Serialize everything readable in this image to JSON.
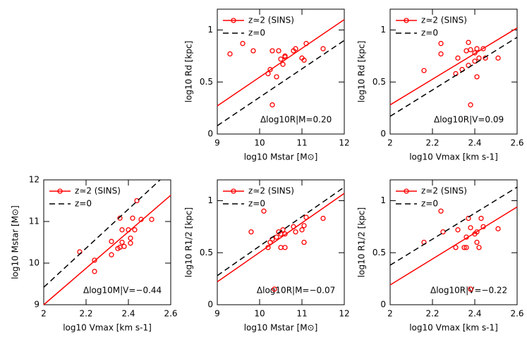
{
  "chart_data": [
    {
      "type": "scatter",
      "xlabel": "log10 Mstar [M⊙]",
      "ylabel": "log10 Rd [kpc]",
      "annotation": "Δlog10R|M=0.20",
      "xlim": [
        9,
        12
      ],
      "ylim": [
        0,
        1.2
      ],
      "xticks": [
        9,
        10,
        11,
        12
      ],
      "yticks": [
        0,
        0.5,
        1
      ],
      "series": [
        {
          "name": "z≃2 (SINS)",
          "color": "#ff0000",
          "x": [
            9.3,
            9.6,
            9.85,
            10.2,
            10.25,
            10.3,
            10.4,
            10.45,
            10.5,
            10.55,
            10.6,
            10.6,
            10.8,
            10.85,
            11.0,
            11.05,
            11.1,
            11.5,
            10.3
          ],
          "values": [
            0.77,
            0.87,
            0.8,
            0.58,
            0.62,
            0.8,
            0.55,
            0.8,
            0.72,
            0.67,
            0.74,
            0.75,
            0.8,
            0.82,
            0.73,
            0.71,
            0.87,
            0.82,
            0.28
          ],
          "fit": {
            "x": [
              9,
              12
            ],
            "values": [
              0.27,
              1.1
            ]
          }
        },
        {
          "name": "z=0",
          "color": "#000000",
          "dashed": true,
          "x": [
            9,
            12
          ],
          "values": [
            0.08,
            0.9
          ]
        }
      ]
    },
    {
      "type": "scatter",
      "xlabel": "log10 Vmax [km s-1]",
      "ylabel": "log10 Rd [kpc]",
      "annotation": "Δlog10R|V=0.09",
      "xlim": [
        2,
        2.6
      ],
      "ylim": [
        0,
        1.2
      ],
      "xticks": [
        2,
        2.2,
        2.4,
        2.6
      ],
      "yticks": [
        0,
        0.5,
        1
      ],
      "series": [
        {
          "name": "z≃2 (SINS)",
          "color": "#ff0000",
          "x": [
            2.16,
            2.24,
            2.24,
            2.32,
            2.31,
            2.34,
            2.36,
            2.37,
            2.37,
            2.38,
            2.38,
            2.4,
            2.4,
            2.41,
            2.41,
            2.42,
            2.44,
            2.45,
            2.51
          ],
          "values": [
            0.61,
            0.87,
            0.77,
            0.73,
            0.58,
            0.62,
            0.8,
            0.66,
            0.88,
            0.81,
            0.28,
            0.78,
            0.7,
            0.82,
            0.55,
            0.73,
            0.82,
            0.73,
            0.73
          ],
          "fit": {
            "x": [
              2,
              2.6
            ],
            "values": [
              0.28,
              1.02
            ]
          }
        },
        {
          "name": "z=0",
          "color": "#000000",
          "dashed": true,
          "x": [
            2,
            2.6
          ],
          "values": [
            0.17,
            0.93
          ]
        }
      ]
    },
    {
      "type": "scatter",
      "xlabel": "log10 Vmax [km s-1]",
      "ylabel": "log10 Mstar [M⊙]",
      "annotation": "Δlog10M|V=−0.44",
      "xlim": [
        2,
        2.6
      ],
      "ylim": [
        9,
        12
      ],
      "xticks": [
        2,
        2.2,
        2.4,
        2.6
      ],
      "yticks": [
        9,
        10,
        11,
        12
      ],
      "series": [
        {
          "name": "z≃2 (SINS)",
          "color": "#ff0000",
          "x": [
            2.17,
            2.24,
            2.24,
            2.32,
            2.32,
            2.35,
            2.36,
            2.36,
            2.37,
            2.37,
            2.38,
            2.4,
            2.41,
            2.41,
            2.42,
            2.43,
            2.44,
            2.46,
            2.51
          ],
          "values": [
            10.27,
            10.07,
            9.8,
            10.52,
            10.2,
            10.35,
            10.38,
            11.08,
            10.8,
            10.5,
            10.4,
            10.8,
            10.6,
            10.48,
            11.08,
            10.8,
            11.5,
            11.05,
            11.05
          ],
          "fit": {
            "x": [
              2,
              2.6
            ],
            "values": [
              9.0,
              11.63
            ]
          }
        },
        {
          "name": "z=0",
          "color": "#000000",
          "dashed": true,
          "x": [
            2,
            2.55
          ],
          "values": [
            9.42,
            12
          ]
        }
      ]
    },
    {
      "type": "scatter",
      "xlabel": "log10 Mstar [M⊙]",
      "ylabel": "log10 R1/2 [kpc]",
      "annotation": "Δlog10R|M=−0.07",
      "xlim": [
        9,
        12
      ],
      "ylim": [
        0,
        1.2
      ],
      "xticks": [
        9,
        10,
        11,
        12
      ],
      "yticks": [
        0,
        0.5,
        1
      ],
      "series": [
        {
          "name": "z≃2 (SINS)",
          "color": "#ff0000",
          "x": [
            9.8,
            10.1,
            10.2,
            10.25,
            10.3,
            10.35,
            10.4,
            10.45,
            10.5,
            10.5,
            10.55,
            10.6,
            10.6,
            10.8,
            10.85,
            11.0,
            11.05,
            11.05,
            11.1,
            11.5
          ],
          "values": [
            0.7,
            0.9,
            0.55,
            0.6,
            0.63,
            0.15,
            0.65,
            0.7,
            0.55,
            0.68,
            0.72,
            0.55,
            0.68,
            0.75,
            0.7,
            0.72,
            0.76,
            0.6,
            0.84,
            0.83
          ],
          "fit": {
            "x": [
              9,
              12
            ],
            "values": [
              0.22,
              1.07
            ]
          }
        },
        {
          "name": "z=0",
          "color": "#000000",
          "dashed": true,
          "x": [
            9,
            12
          ],
          "values": [
            0.28,
            1.13
          ]
        }
      ]
    },
    {
      "type": "scatter",
      "xlabel": "log10 Vmax [km s-1]",
      "ylabel": "log10 R1/2 [kpc]",
      "annotation": "Δlog10R|V=−0.22",
      "xlim": [
        2,
        2.6
      ],
      "ylim": [
        0,
        1.2
      ],
      "xticks": [
        2,
        2.2,
        2.4,
        2.6
      ],
      "yticks": [
        0,
        0.5,
        1
      ],
      "series": [
        {
          "name": "z≃2 (SINS)",
          "color": "#ff0000",
          "x": [
            2.16,
            2.24,
            2.25,
            2.31,
            2.32,
            2.35,
            2.36,
            2.37,
            2.38,
            2.38,
            2.4,
            2.41,
            2.41,
            2.42,
            2.43,
            2.44,
            2.51,
            2.36
          ],
          "values": [
            0.6,
            0.9,
            0.7,
            0.55,
            0.72,
            0.55,
            0.65,
            0.83,
            0.15,
            0.74,
            0.68,
            0.7,
            0.6,
            0.55,
            0.83,
            0.75,
            0.73,
            0.55
          ],
          "fit": {
            "x": [
              2,
              2.6
            ],
            "values": [
              0.19,
              0.94
            ]
          }
        },
        {
          "name": "z=0",
          "color": "#000000",
          "dashed": true,
          "x": [
            2,
            2.6
          ],
          "values": [
            0.38,
            1.13
          ]
        }
      ]
    }
  ]
}
